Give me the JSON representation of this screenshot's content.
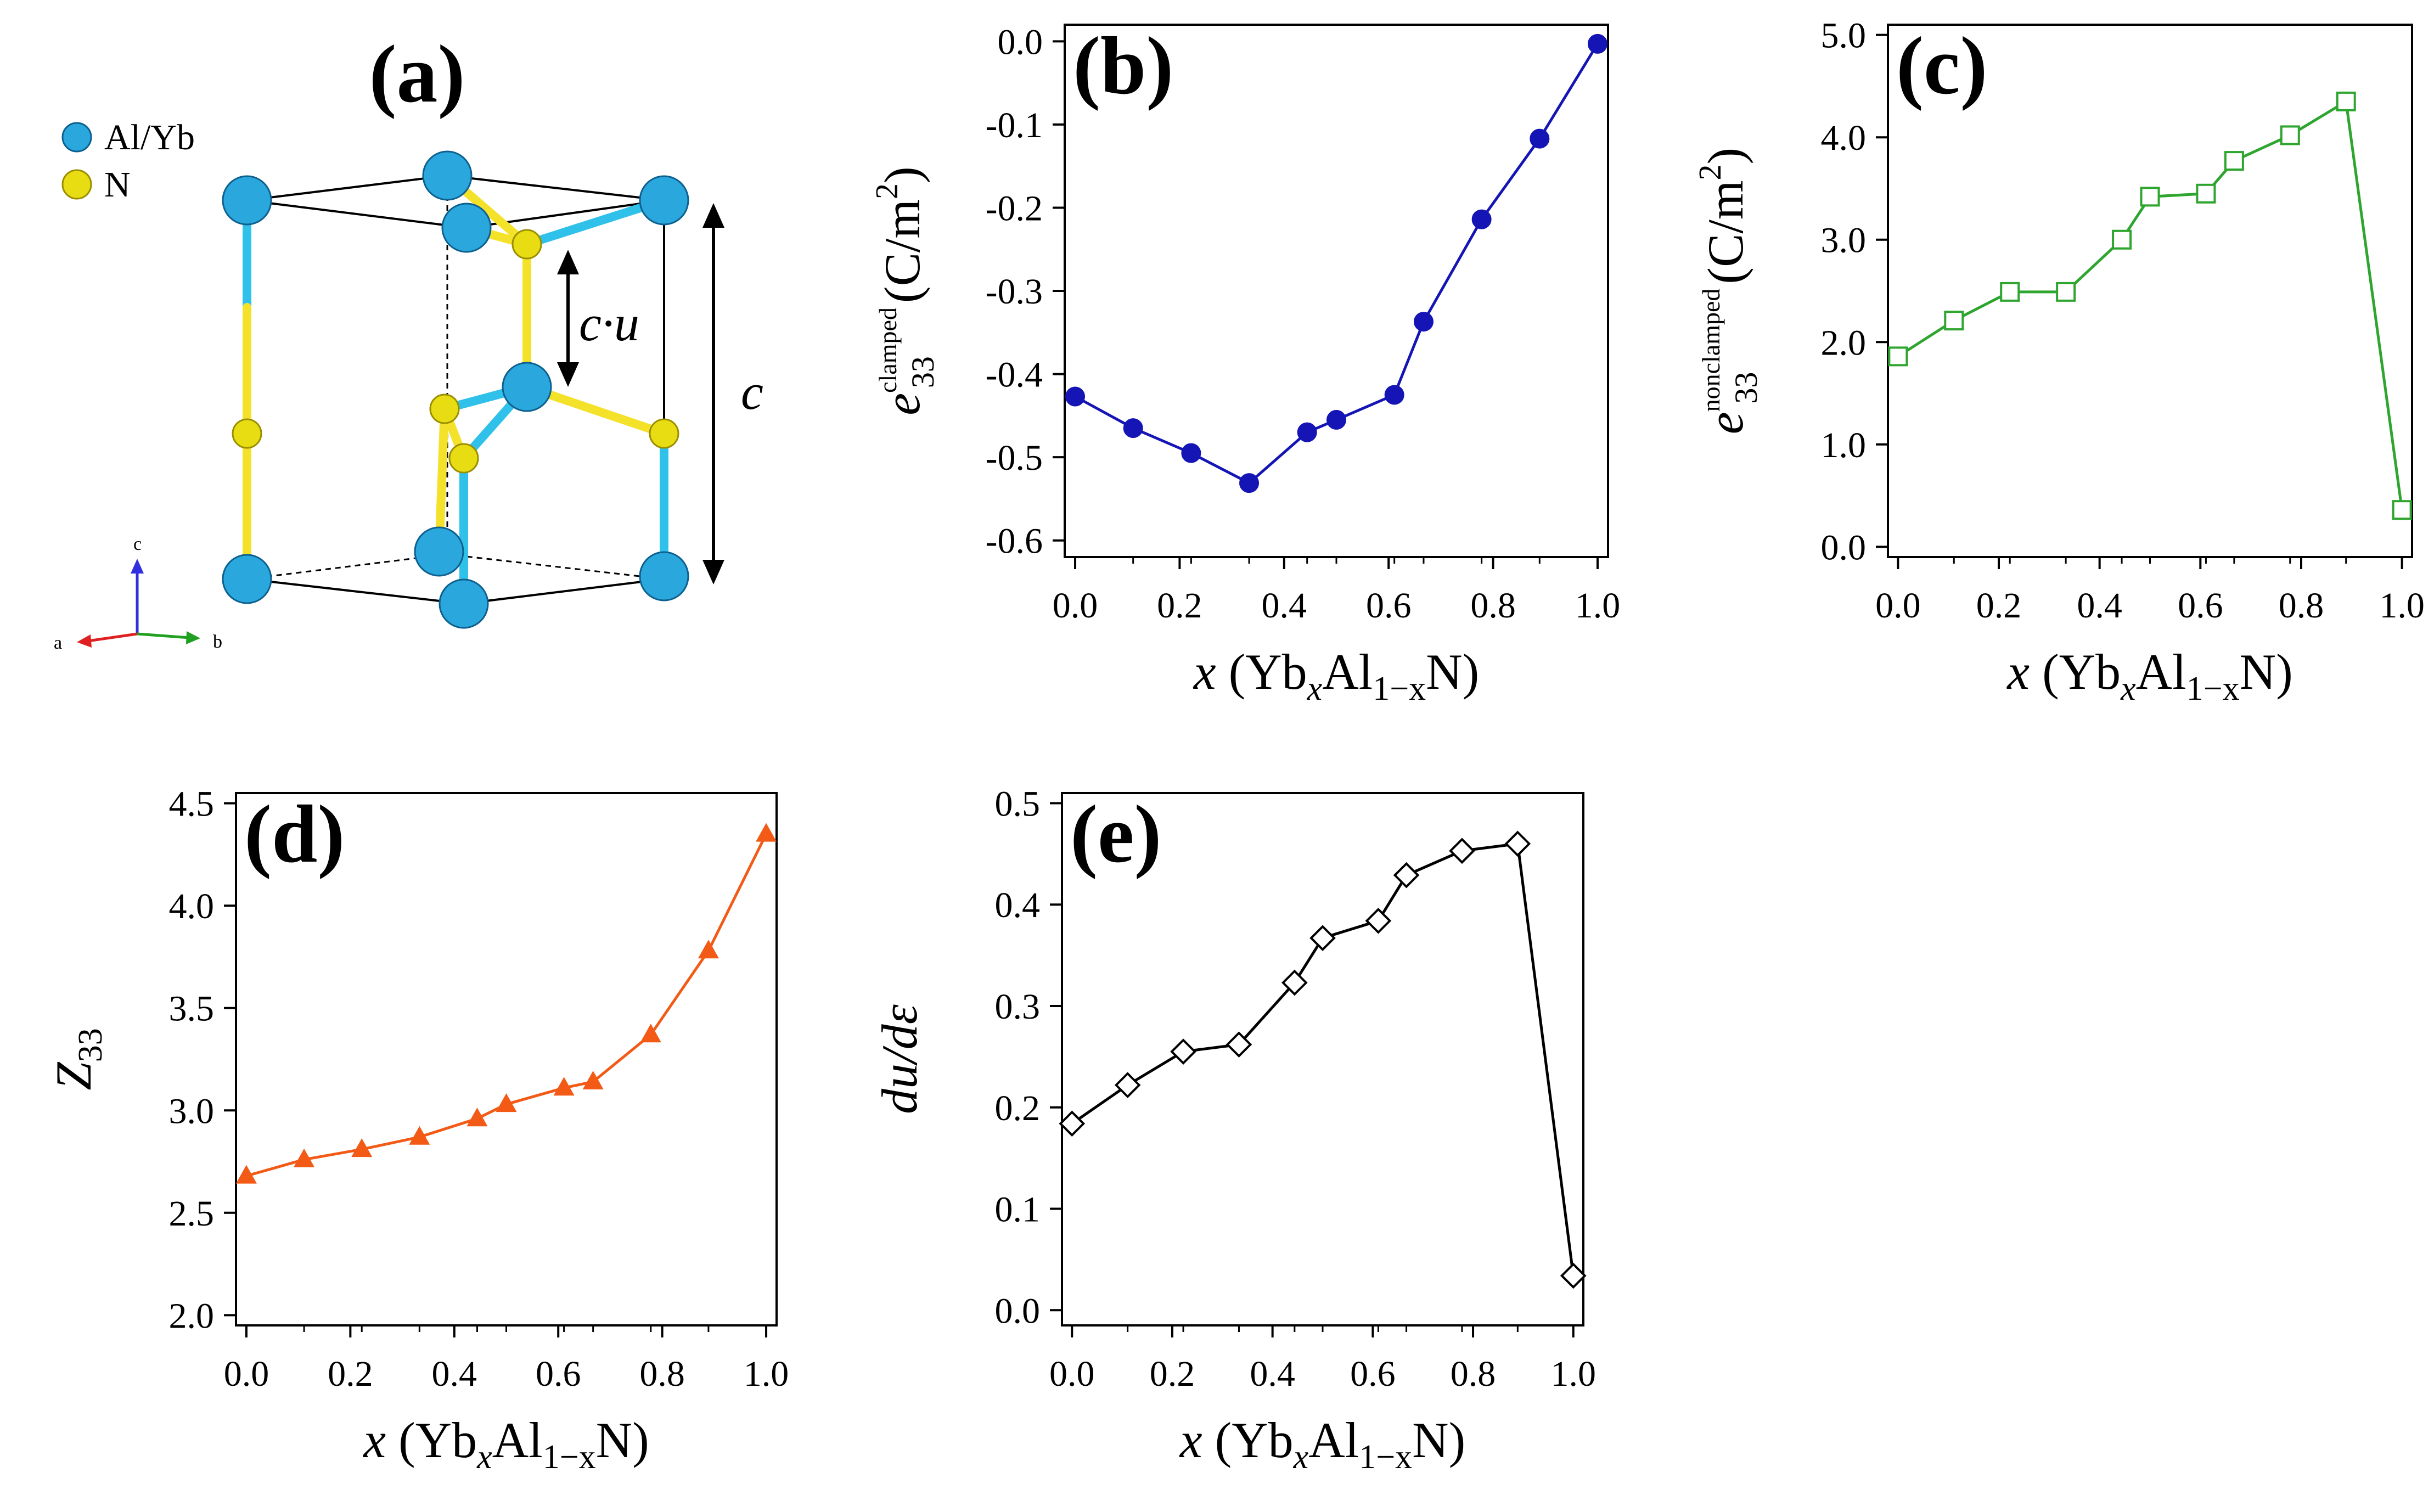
{
  "figure": {
    "panel_a": {
      "label": "(a)",
      "legend": [
        {
          "name": "Al/Yb",
          "color": "#2aa7dc"
        },
        {
          "name": "N",
          "color": "#e8dc12"
        }
      ],
      "annotations": {
        "cu": "c·u",
        "c": "c"
      },
      "axes_triad": {
        "a": "a",
        "b": "b",
        "c": "c"
      },
      "colors": {
        "atom_edge": "#0d5f8e",
        "bond_alyb": "#2fc1ea",
        "bond_n": "#f4e22a",
        "cell": "#000000"
      }
    }
  },
  "chart_data": [
    {
      "id": "b",
      "type": "line",
      "label": "(b)",
      "marker": "filled-circle",
      "color": "#1515b5",
      "xlabel": {
        "sym": "x",
        "open": " (Yb",
        "sub1": "x",
        "mid": "Al",
        "sub2": "1−x",
        "close": "N)"
      },
      "ylabel": {
        "base": "e",
        "sup": "clamped",
        "sub": "33",
        "unit": "(C/m",
        "pow": "2",
        "end": ")"
      },
      "xlim": [
        -0.02,
        1.02
      ],
      "ylim": [
        -0.62,
        0.02
      ],
      "xticks": [
        0.0,
        0.2,
        0.4,
        0.6,
        0.8,
        1.0
      ],
      "xtick_labels": [
        "0.0",
        "0.2",
        "0.4",
        "0.6",
        "0.8",
        "1.0"
      ],
      "yticks": [
        -0.6,
        -0.5,
        -0.4,
        -0.3,
        -0.2,
        -0.1,
        0.0
      ],
      "ytick_labels": [
        "-0.6",
        "-0.5",
        "-0.4",
        "-0.3",
        "-0.2",
        "-0.1",
        "0.0"
      ],
      "x": [
        0.0,
        0.111,
        0.222,
        0.333,
        0.444,
        0.5,
        0.611,
        0.667,
        0.778,
        0.889,
        1.0
      ],
      "y": [
        -0.427,
        -0.465,
        -0.495,
        -0.531,
        -0.47,
        -0.455,
        -0.425,
        -0.337,
        -0.214,
        -0.117,
        -0.003
      ]
    },
    {
      "id": "c",
      "type": "line",
      "label": "(c)",
      "marker": "open-square",
      "color": "#2ea52e",
      "xlabel": {
        "sym": "x",
        "open": " (Yb",
        "sub1": "x",
        "mid": "Al",
        "sub2": "1−x",
        "close": "N)"
      },
      "ylabel": {
        "base": "e",
        "sup": "nonclamped",
        "sub": "33",
        "unit": "(C/m",
        "pow": "2",
        "end": ")"
      },
      "xlim": [
        -0.02,
        1.02
      ],
      "ylim": [
        -0.1,
        5.1
      ],
      "xticks": [
        0.0,
        0.2,
        0.4,
        0.6,
        0.8,
        1.0
      ],
      "xtick_labels": [
        "0.0",
        "0.2",
        "0.4",
        "0.6",
        "0.8",
        "1.0"
      ],
      "yticks": [
        0.0,
        1.0,
        2.0,
        3.0,
        4.0,
        5.0
      ],
      "ytick_labels": [
        "0.0",
        "1.0",
        "2.0",
        "3.0",
        "4.0",
        "5.0"
      ],
      "x": [
        0.0,
        0.111,
        0.222,
        0.333,
        0.444,
        0.5,
        0.611,
        0.667,
        0.778,
        0.889,
        1.0
      ],
      "y": [
        1.86,
        2.21,
        2.49,
        2.49,
        3.0,
        3.42,
        3.45,
        3.77,
        4.02,
        4.35,
        0.36
      ]
    },
    {
      "id": "d",
      "type": "line",
      "label": "(d)",
      "marker": "filled-triangle",
      "color": "#f25a16",
      "xlabel": {
        "sym": "x",
        "open": " (Yb",
        "sub1": "x",
        "mid": "Al",
        "sub2": "1−x",
        "close": "N)"
      },
      "ylabel": {
        "base": "Z",
        "sub": "33"
      },
      "xlim": [
        -0.02,
        1.02
      ],
      "ylim": [
        1.95,
        4.55
      ],
      "xticks": [
        0.0,
        0.2,
        0.4,
        0.6,
        0.8,
        1.0
      ],
      "xtick_labels": [
        "0.0",
        "0.2",
        "0.4",
        "0.6",
        "0.8",
        "1.0"
      ],
      "yticks": [
        2.0,
        2.5,
        3.0,
        3.5,
        4.0,
        4.5
      ],
      "ytick_labels": [
        "2.0",
        "2.5",
        "3.0",
        "3.5",
        "4.0",
        "4.5"
      ],
      "x": [
        0.0,
        0.111,
        0.222,
        0.333,
        0.444,
        0.5,
        0.611,
        0.667,
        0.778,
        0.889,
        1.0
      ],
      "y": [
        2.68,
        2.76,
        2.81,
        2.87,
        2.96,
        3.03,
        3.11,
        3.14,
        3.37,
        3.78,
        4.35
      ]
    },
    {
      "id": "e",
      "type": "line",
      "label": "(e)",
      "marker": "open-diamond",
      "color": "#000000",
      "xlabel": {
        "sym": "x",
        "open": " (Yb",
        "sub1": "x",
        "mid": "Al",
        "sub2": "1−x",
        "close": "N)"
      },
      "ylabel": {
        "text": "du/dε"
      },
      "xlim": [
        -0.02,
        1.02
      ],
      "ylim": [
        -0.015,
        0.51
      ],
      "xticks": [
        0.0,
        0.2,
        0.4,
        0.6,
        0.8,
        1.0
      ],
      "xtick_labels": [
        "0.0",
        "0.2",
        "0.4",
        "0.6",
        "0.8",
        "1.0"
      ],
      "yticks": [
        0.0,
        0.1,
        0.2,
        0.3,
        0.4,
        0.5
      ],
      "ytick_labels": [
        "0.0",
        "0.1",
        "0.2",
        "0.3",
        "0.4",
        "0.5"
      ],
      "x": [
        0.0,
        0.111,
        0.222,
        0.333,
        0.444,
        0.5,
        0.611,
        0.667,
        0.778,
        0.889,
        1.0
      ],
      "y": [
        0.184,
        0.222,
        0.255,
        0.262,
        0.323,
        0.367,
        0.384,
        0.429,
        0.453,
        0.46,
        0.034
      ]
    }
  ]
}
